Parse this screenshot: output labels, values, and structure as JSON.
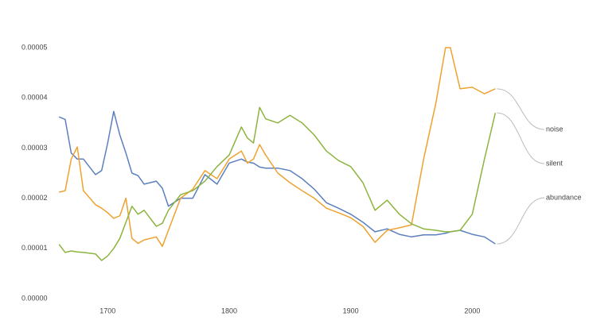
{
  "chart_data": {
    "type": "line",
    "x": [
      1660,
      1665,
      1670,
      1675,
      1680,
      1690,
      1695,
      1700,
      1705,
      1710,
      1715,
      1720,
      1725,
      1730,
      1740,
      1745,
      1750,
      1760,
      1770,
      1780,
      1790,
      1800,
      1810,
      1815,
      1820,
      1825,
      1830,
      1840,
      1850,
      1860,
      1870,
      1880,
      1890,
      1900,
      1910,
      1920,
      1930,
      1940,
      1950,
      1960,
      1970,
      1978,
      1982,
      1990,
      2000,
      2010,
      2019
    ],
    "series": [
      {
        "name": "abundance",
        "color": "#5b80c0",
        "values": [
          3.62e-05,
          3.57e-05,
          2.9e-05,
          2.78e-05,
          2.78e-05,
          2.47e-05,
          2.55e-05,
          3.1e-05,
          3.73e-05,
          3.26e-05,
          2.9e-05,
          2.5e-05,
          2.45e-05,
          2.28e-05,
          2.34e-05,
          2.2e-05,
          1.84e-05,
          2e-05,
          2e-05,
          2.47e-05,
          2.28e-05,
          2.7e-05,
          2.78e-05,
          2.72e-05,
          2.7e-05,
          2.62e-05,
          2.6e-05,
          2.6e-05,
          2.55e-05,
          2.39e-05,
          2.18e-05,
          1.91e-05,
          1.8e-05,
          1.68e-05,
          1.52e-05,
          1.33e-05,
          1.39e-05,
          1.28e-05,
          1.23e-05,
          1.27e-05,
          1.27e-05,
          1.3e-05,
          1.33e-05,
          1.36e-05,
          1.28e-05,
          1.23e-05,
          1.09e-05
        ]
      },
      {
        "name": "noise",
        "color": "#eea230",
        "values": [
          2.12e-05,
          2.15e-05,
          2.78e-05,
          3.02e-05,
          2.15e-05,
          1.87e-05,
          1.8e-05,
          1.71e-05,
          1.6e-05,
          1.65e-05,
          2e-05,
          1.2e-05,
          1.1e-05,
          1.17e-05,
          1.23e-05,
          1.04e-05,
          1.36e-05,
          2e-05,
          2.18e-05,
          2.55e-05,
          2.39e-05,
          2.78e-05,
          2.94e-05,
          2.7e-05,
          2.78e-05,
          3.07e-05,
          2.86e-05,
          2.5e-05,
          2.31e-05,
          2.15e-05,
          2e-05,
          1.8e-05,
          1.71e-05,
          1.61e-05,
          1.44e-05,
          1.12e-05,
          1.36e-05,
          1.41e-05,
          1.47e-05,
          2.78e-05,
          3.89e-05,
          5e-05,
          5e-05,
          4.18e-05,
          4.21e-05,
          4.08e-05,
          4.18e-05
        ]
      },
      {
        "name": "silent",
        "color": "#8db43e",
        "values": [
          1.08e-05,
          9.2e-06,
          9.5e-06,
          9.3e-06,
          9.2e-06,
          8.9e-06,
          7.6e-06,
          8.5e-06,
          1e-05,
          1.2e-05,
          1.52e-05,
          1.84e-05,
          1.68e-05,
          1.76e-05,
          1.44e-05,
          1.5e-05,
          1.76e-05,
          2.07e-05,
          2.15e-05,
          2.34e-05,
          2.63e-05,
          2.86e-05,
          3.42e-05,
          3.2e-05,
          3.1e-05,
          3.81e-05,
          3.58e-05,
          3.5e-05,
          3.65e-05,
          3.5e-05,
          3.26e-05,
          2.94e-05,
          2.75e-05,
          2.63e-05,
          2.31e-05,
          1.76e-05,
          1.96e-05,
          1.68e-05,
          1.49e-05,
          1.39e-05,
          1.36e-05,
          1.33e-05,
          1.33e-05,
          1.36e-05,
          1.68e-05,
          2.78e-05,
          3.7e-05
        ]
      }
    ],
    "xlim": [
      1652,
      2060
    ],
    "xticks": [
      1700,
      1800,
      1900,
      2000
    ],
    "ylim": [
      0,
      5e-05
    ],
    "yticks": [
      {
        "value": 0,
        "label": "0.00000"
      },
      1e-05,
      2e-05,
      3e-05,
      4e-05,
      5e-05
    ]
  }
}
